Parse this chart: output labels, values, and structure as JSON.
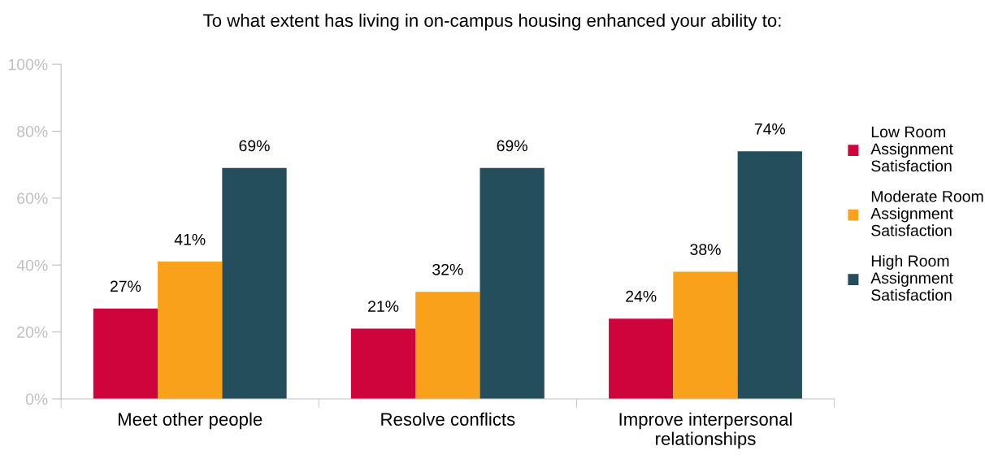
{
  "chart_data": {
    "type": "bar",
    "title": "To what extent has living in on-campus housing enhanced your ability to:",
    "categories": [
      "Meet other people",
      "Resolve conflicts",
      "Improve interpersonal\nrelationships"
    ],
    "series": [
      {
        "name": "Low Room\nAssignment\nSatisfaction",
        "color": "#d0043c",
        "values": [
          27,
          21,
          24
        ],
        "value_labels": [
          "27%",
          "21%",
          "24%"
        ]
      },
      {
        "name": "Moderate Room\nAssignment\nSatisfaction",
        "color": "#f9a11b",
        "values": [
          41,
          32,
          38
        ],
        "value_labels": [
          "41%",
          "32%",
          "38%"
        ]
      },
      {
        "name": "High Room\nAssignment\nSatisfaction",
        "color": "#254e5c",
        "values": [
          69,
          69,
          74
        ],
        "value_labels": [
          "69%",
          "69%",
          "74%"
        ]
      }
    ],
    "ylim": [
      0,
      100
    ],
    "yticks": [
      {
        "value": 0,
        "label": "0%"
      },
      {
        "value": 20,
        "label": "20%"
      },
      {
        "value": 40,
        "label": "40%"
      },
      {
        "value": 60,
        "label": "60%"
      },
      {
        "value": 80,
        "label": "80%"
      },
      {
        "value": 100,
        "label": "100%"
      }
    ],
    "grid": false,
    "legend": "right"
  }
}
